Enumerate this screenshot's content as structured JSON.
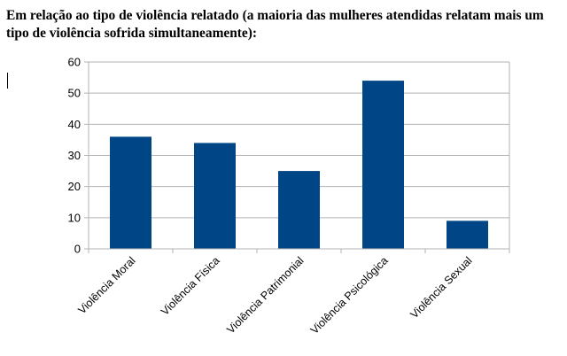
{
  "document": {
    "heading_lines": [
      "Em relação ao tipo de violência relatado (a maioria das mulheres atendidas relatam mais um",
      "tipo de violência sofrida simultaneamente):"
    ]
  },
  "chart_data": {
    "type": "bar",
    "categories": [
      "Violência Moral",
      "Violência Física",
      "Violência Patrimonial",
      "Violência Psicológica",
      "Violência Sexual"
    ],
    "values": [
      36,
      34,
      25,
      54,
      9
    ],
    "ylim": [
      0,
      60
    ],
    "yticks": [
      0,
      10,
      20,
      30,
      40,
      50,
      60
    ],
    "grid": true,
    "legend": "none",
    "bar_color": "#004586",
    "grid_color": "#b3b3b3"
  }
}
